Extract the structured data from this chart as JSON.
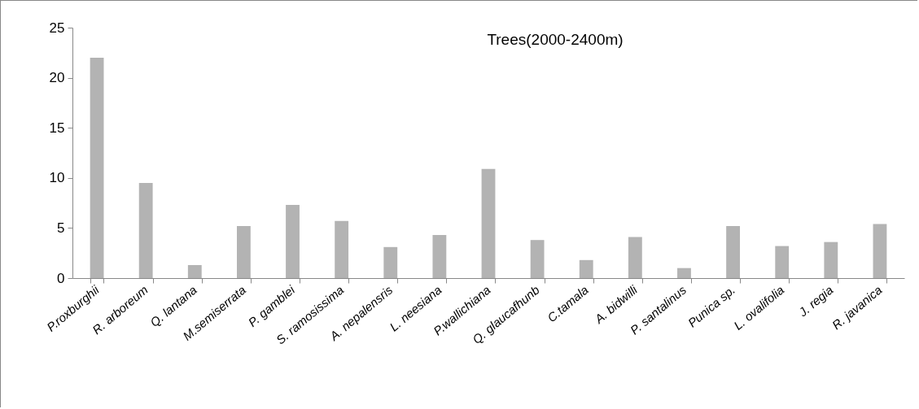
{
  "chart_data": {
    "type": "bar",
    "title": "Trees(2000-2400m)",
    "categories": [
      "P.roxburghii",
      "R. arboreum",
      "Q. lantana",
      "M.semiserrata",
      "P. gamblei",
      "S. ramosissima",
      "A. nepalensris",
      "L. neesiana",
      "P.wallichiana",
      "Q. glaucafhunb",
      "C.tamala",
      "A. bidwilli",
      "P. santalinus",
      "Punica sp.",
      "L. ovalifolia",
      "J.  regia",
      "R. javanica"
    ],
    "values": [
      22.0,
      9.5,
      1.3,
      5.2,
      7.3,
      5.7,
      3.1,
      4.3,
      10.9,
      3.8,
      1.8,
      4.1,
      1.0,
      5.2,
      3.2,
      3.6,
      5.4
    ],
    "color": "#b3b3b3",
    "ylim": [
      0,
      25
    ],
    "yticks": [
      0,
      5,
      10,
      15,
      20,
      25
    ],
    "grid": false
  }
}
